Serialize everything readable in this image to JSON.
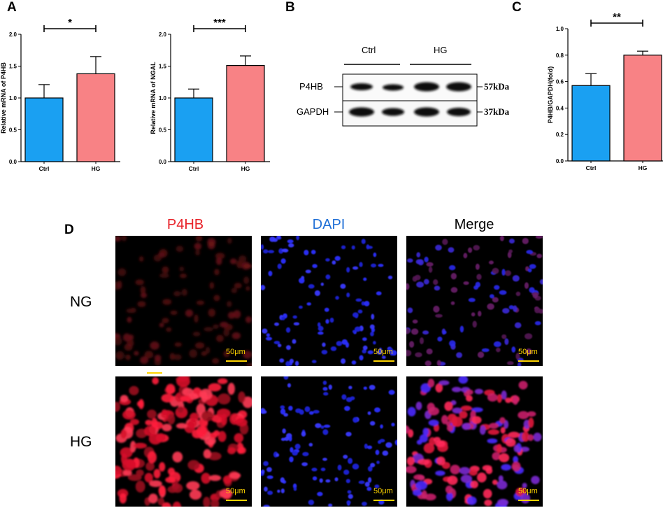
{
  "panels": {
    "A": "A",
    "B": "B",
    "C": "C",
    "D": "D"
  },
  "chart_data": [
    {
      "type": "bar",
      "ylabel": "Relative mRNA of P4HB",
      "categories": [
        "Ctrl",
        "HG"
      ],
      "values": [
        1.0,
        1.38
      ],
      "errors": [
        0.21,
        0.27
      ],
      "colors": [
        "#1aa0f2",
        "#f88285"
      ],
      "ylim": [
        0,
        2.0
      ],
      "yticks": [
        "0.0",
        "0.5",
        "1.0",
        "1.5",
        "2.0"
      ],
      "significance": "*"
    },
    {
      "type": "bar",
      "ylabel": "Relative mRNA of NGAL",
      "categories": [
        "Ctrl",
        "HG"
      ],
      "values": [
        1.0,
        1.51
      ],
      "errors": [
        0.14,
        0.15
      ],
      "colors": [
        "#1aa0f2",
        "#f88285"
      ],
      "ylim": [
        0,
        2.0
      ],
      "yticks": [
        "0.0",
        "0.5",
        "1.0",
        "1.5",
        "2.0"
      ],
      "significance": "***"
    },
    {
      "type": "bar",
      "ylabel": "P4HB/GAPDH(fold)",
      "categories": [
        "Ctrl",
        "HG"
      ],
      "values": [
        0.57,
        0.8
      ],
      "errors": [
        0.09,
        0.03
      ],
      "colors": [
        "#1aa0f2",
        "#f88285"
      ],
      "ylim": [
        0,
        1.0
      ],
      "yticks": [
        "0.0",
        "0.2",
        "0.4",
        "0.6",
        "0.8",
        "1.0"
      ],
      "significance": "**"
    }
  ],
  "western_blot": {
    "groups": [
      "Ctrl",
      "HG"
    ],
    "bands": [
      {
        "label": "P4HB",
        "size": "57kDa"
      },
      {
        "label": "GAPDH",
        "size": "37kDa"
      }
    ]
  },
  "microscopy": {
    "columns": [
      {
        "title": "P4HB",
        "color": "#e8232a"
      },
      {
        "title": "DAPI",
        "color": "#1f6fd6"
      },
      {
        "title": "Merge",
        "color": "#000000"
      }
    ],
    "rows": [
      "NG",
      "HG"
    ],
    "scale_bar": "50μm"
  }
}
